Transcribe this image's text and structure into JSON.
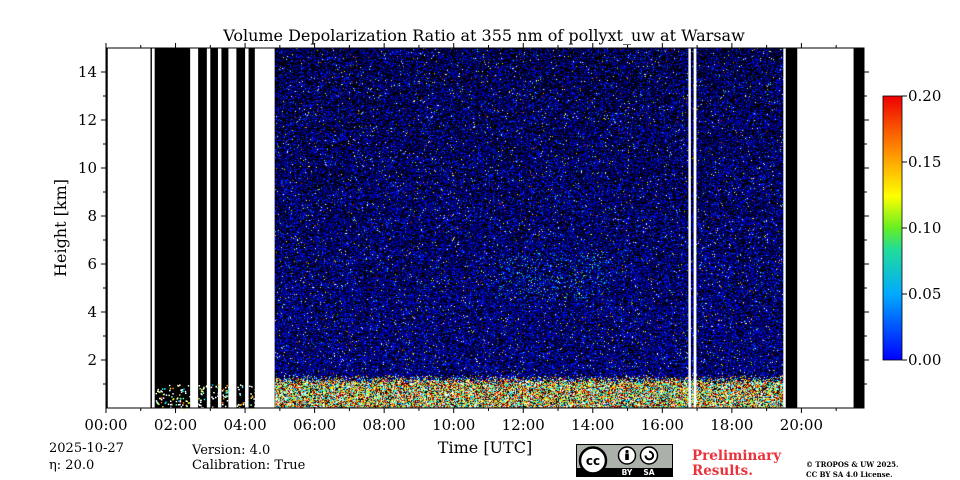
{
  "chart_data": {
    "type": "heatmap",
    "title": "Volume Depolarization Ratio at 355 nm of pollyxt_uw at Warsaw",
    "xlabel": "Time [UTC]",
    "ylabel": "Height [km]",
    "xlim": [
      0,
      21.8
    ],
    "ylim": [
      0,
      15
    ],
    "x_ticks": [
      0,
      2,
      4,
      6,
      8,
      10,
      12,
      14,
      16,
      18,
      20
    ],
    "x_tick_labels": [
      "00:00",
      "02:00",
      "04:00",
      "06:00",
      "08:00",
      "10:00",
      "12:00",
      "14:00",
      "16:00",
      "18:00",
      "20:00"
    ],
    "y_ticks": [
      2,
      4,
      6,
      8,
      10,
      12,
      14
    ],
    "y_tick_labels": [
      "2",
      "4",
      "6",
      "8",
      "10",
      "12",
      "14"
    ],
    "colorbar": {
      "min": 0.0,
      "max": 0.2,
      "ticks": [
        0.0,
        0.05,
        0.1,
        0.15,
        0.2
      ],
      "tick_labels": [
        "0.00",
        "0.05",
        "0.10",
        "0.15",
        "0.20"
      ],
      "colormap": "jet"
    },
    "no_data_intervals_hours": [
      [
        0.05,
        1.28
      ],
      [
        1.32,
        1.4
      ],
      [
        2.42,
        2.65
      ],
      [
        2.9,
        3.0
      ],
      [
        3.22,
        3.32
      ],
      [
        3.52,
        3.75
      ],
      [
        4.0,
        4.1
      ],
      [
        4.28,
        4.85
      ],
      [
        16.75,
        16.82
      ],
      [
        16.9,
        16.98
      ],
      [
        19.48,
        19.55
      ],
      [
        19.88,
        21.5
      ]
    ],
    "no_signal_intervals_hours": [
      [
        0.0,
        0.05
      ],
      [
        1.28,
        1.32
      ],
      [
        1.4,
        2.42
      ],
      [
        2.65,
        2.9
      ],
      [
        3.0,
        3.22
      ],
      [
        3.32,
        3.52
      ],
      [
        3.75,
        4.0
      ],
      [
        4.1,
        4.28
      ],
      [
        19.55,
        19.88
      ],
      [
        21.5,
        21.8
      ]
    ],
    "features": [
      {
        "name": "boundary layer",
        "time_start": 4.85,
        "time_end": 19.5,
        "height_top_km": 1.2,
        "depol_range": [
          0.05,
          0.2
        ]
      },
      {
        "name": "elevated aerosol layer",
        "time_start": 11.3,
        "time_end": 14.5,
        "height_range_km": [
          4.5,
          6.5
        ],
        "depol_range": [
          0.04,
          0.08
        ]
      },
      {
        "name": "free troposphere noise",
        "time_start": 4.85,
        "time_end": 19.5,
        "height_range_km": [
          1.2,
          15
        ],
        "depol_range": [
          0.0,
          0.03
        ]
      }
    ]
  },
  "meta": {
    "date": "2025-10-27",
    "eta": "η: 20.0",
    "version": "Version: 4.0",
    "calibration": "Calibration: True",
    "preliminary": [
      "Preliminary",
      "Results."
    ],
    "copyright": [
      "© TROPOS & UW 2025.",
      "CC BY SA 4.0 License."
    ],
    "license_badge": [
      "cc",
      "BY",
      "SA"
    ]
  }
}
